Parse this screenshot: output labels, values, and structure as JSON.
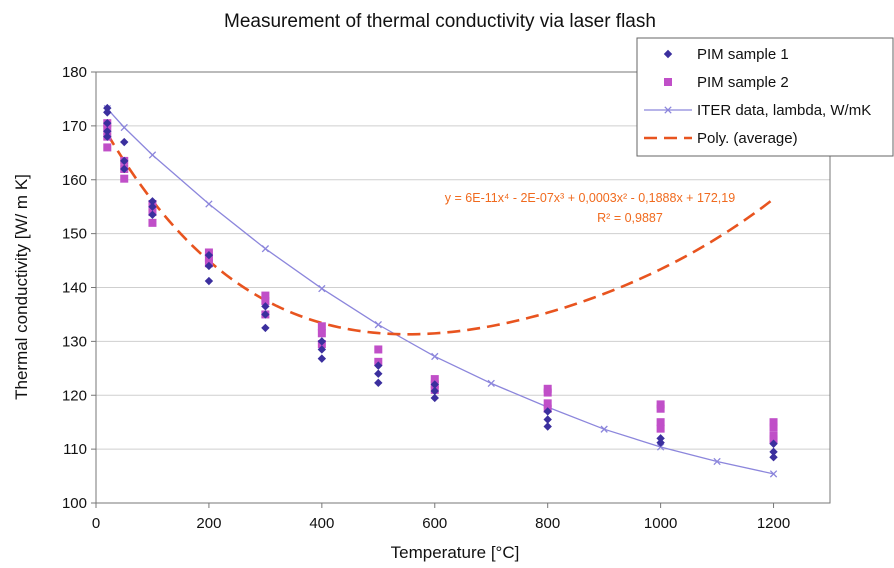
{
  "colors": {
    "sample1": "#3b2f9e",
    "sample2": "#c04fc8",
    "iter": "#8c86dc",
    "poly": "#e8541f",
    "equation": "#f06a1e"
  },
  "chart_data": {
    "type": "scatter",
    "title": "Measurement of thermal conductivity via laser flash",
    "xlabel": "Temperature  [°C]",
    "ylabel": "Thermal conductivity  [W/ m K]",
    "xlim": [
      0,
      1300
    ],
    "ylim": [
      100,
      180
    ],
    "x_ticks": [
      0,
      200,
      400,
      600,
      800,
      1000,
      1200
    ],
    "y_ticks": [
      100,
      110,
      120,
      130,
      140,
      150,
      160,
      170,
      180
    ],
    "grid": "horizontal",
    "legend_position": "top-right",
    "legend": [
      {
        "key": "sample1",
        "label": "PIM sample 1"
      },
      {
        "key": "sample2",
        "label": "PIM sample 2"
      },
      {
        "key": "iter",
        "label": "ITER data, lambda, W/mK"
      },
      {
        "key": "poly",
        "label": "Poly. (average)"
      }
    ],
    "series": [
      {
        "name": "PIM sample 1",
        "key": "sample1",
        "marker": "diamond",
        "points": [
          [
            20,
            173.3
          ],
          [
            20,
            172.5
          ],
          [
            20,
            170.5
          ],
          [
            20,
            169
          ],
          [
            20,
            168
          ],
          [
            50,
            167
          ],
          [
            50,
            163.5
          ],
          [
            50,
            162
          ],
          [
            100,
            156
          ],
          [
            100,
            155
          ],
          [
            100,
            153.5
          ],
          [
            200,
            146
          ],
          [
            200,
            144
          ],
          [
            200,
            141.2
          ],
          [
            300,
            136.5
          ],
          [
            300,
            135
          ],
          [
            300,
            132.5
          ],
          [
            400,
            130
          ],
          [
            400,
            128.5
          ],
          [
            400,
            126.8
          ],
          [
            500,
            125.5
          ],
          [
            500,
            124
          ],
          [
            500,
            122.3
          ],
          [
            600,
            122
          ],
          [
            600,
            120.8
          ],
          [
            600,
            119.5
          ],
          [
            800,
            117
          ],
          [
            800,
            115.5
          ],
          [
            800,
            114.2
          ],
          [
            1000,
            112
          ],
          [
            1000,
            111.2
          ],
          [
            1200,
            111
          ],
          [
            1200,
            109.5
          ],
          [
            1200,
            108.5
          ]
        ]
      },
      {
        "name": "PIM sample 2",
        "key": "sample2",
        "marker": "square",
        "points": [
          [
            20,
            170.5
          ],
          [
            20,
            169.5
          ],
          [
            20,
            168
          ],
          [
            20,
            166
          ],
          [
            50,
            163.5
          ],
          [
            50,
            162
          ],
          [
            50,
            160.2
          ],
          [
            100,
            155.5
          ],
          [
            100,
            154
          ],
          [
            100,
            152
          ],
          [
            200,
            146.5
          ],
          [
            200,
            145.5
          ],
          [
            200,
            144.5
          ],
          [
            300,
            138.5
          ],
          [
            300,
            137.5
          ],
          [
            300,
            135
          ],
          [
            400,
            132.8
          ],
          [
            400,
            131.5
          ],
          [
            400,
            129.5
          ],
          [
            500,
            128.5
          ],
          [
            500,
            126.2
          ],
          [
            600,
            123
          ],
          [
            600,
            122
          ],
          [
            600,
            121
          ],
          [
            800,
            121.2
          ],
          [
            800,
            120.5
          ],
          [
            800,
            118.5
          ],
          [
            800,
            117.5
          ],
          [
            1000,
            118.3
          ],
          [
            1000,
            117.5
          ],
          [
            1000,
            115
          ],
          [
            1000,
            113.8
          ],
          [
            1200,
            115
          ],
          [
            1200,
            114
          ],
          [
            1200,
            112.5
          ],
          [
            1200,
            111.8
          ]
        ]
      },
      {
        "name": "ITER data, lambda, W/mK",
        "key": "iter",
        "marker": "x",
        "line": "solid",
        "points": [
          [
            20,
            173.2
          ],
          [
            50,
            169.7
          ],
          [
            100,
            164.6
          ],
          [
            200,
            155.5
          ],
          [
            300,
            147.2
          ],
          [
            400,
            139.8
          ],
          [
            500,
            133.1
          ],
          [
            600,
            127.2
          ],
          [
            700,
            122.2
          ],
          [
            800,
            117.8
          ],
          [
            900,
            113.7
          ],
          [
            1000,
            110.4
          ],
          [
            1100,
            107.7
          ],
          [
            1200,
            105.4
          ]
        ]
      },
      {
        "name": "Poly. (average)",
        "key": "poly",
        "line": "dashed",
        "type": "trendline",
        "x_range": [
          20,
          1200
        ],
        "coefficients": {
          "a4": 6e-11,
          "a3": -2e-07,
          "a2": 0.0003,
          "a1": -0.1888,
          "a0": 172.19
        }
      }
    ],
    "annotations": {
      "equation": "y = 6E-11x⁴ - 2E-07x³ + 0,0003x² - 0,1888x + 172,19",
      "r_squared": "R² = 0,9887"
    }
  }
}
